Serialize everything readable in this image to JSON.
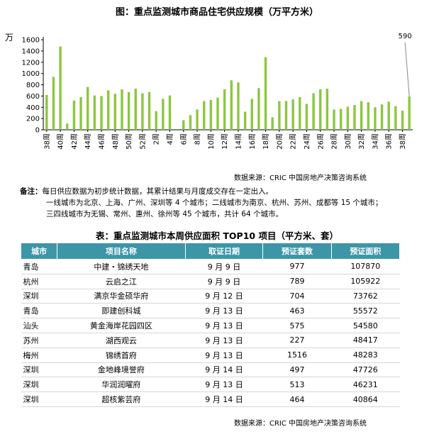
{
  "chart": {
    "title": "图：重点监测城市商品住宅供应规模（万平方米）",
    "unit_label": "万",
    "source": "数据来源：CRIC 中国房地产决策咨询系统",
    "callout": "590"
  },
  "chart_data": {
    "type": "bar",
    "title": "图：重点监测城市商品住宅供应规模（万平方米）",
    "ylabel": "万",
    "ylim": [
      0,
      1600
    ],
    "yticks": [
      0,
      200,
      400,
      600,
      800,
      1000,
      1200,
      1400,
      1600
    ],
    "bar_color": "#8dc63f",
    "x_labels": [
      "38周",
      "40周",
      "42周",
      "44周",
      "46周",
      "48周",
      "50周",
      "52周",
      "2周",
      "4周",
      "6周",
      "8周",
      "10周",
      "12周",
      "14周",
      "16周",
      "18周",
      "20周",
      "22周",
      "24周",
      "26周",
      "28周",
      "30周",
      "32周",
      "34周",
      "36周",
      "38周"
    ],
    "values": [
      620,
      940,
      1480,
      110,
      520,
      580,
      760,
      610,
      600,
      700,
      640,
      720,
      670,
      730,
      650,
      670,
      330,
      550,
      610,
      0,
      170,
      260,
      360,
      510,
      530,
      570,
      720,
      880,
      840,
      320,
      550,
      740,
      1290,
      220,
      510,
      510,
      540,
      580,
      460,
      650,
      720,
      730,
      360,
      370,
      410,
      440,
      510,
      490,
      400,
      450,
      500,
      420,
      340,
      590
    ],
    "annotation": {
      "index": 53,
      "text": "590"
    }
  },
  "note": {
    "label": "备注：",
    "line1": "每日供应数据为初步统计数据，其累计结果与月度成交存在一定出入。",
    "line2": "一线城市为北京、上海、广州、深圳等 4 个城市；二线城市为南京、杭州、苏州、成都等 15 个城市；",
    "line3": "三四线城市为无锡、常州、惠州、徐州等 45 个城市，共计 64 个城市。"
  },
  "table": {
    "title": "表：重点监测城市本周供应面积 TOP10 项目（平方米、套）",
    "headers": [
      "城市",
      "项目名称",
      "取证日期",
      "预证套数",
      "预证面积"
    ],
    "rows": [
      [
        "青岛",
        "中建・锦绣天地",
        "9 月 9 日",
        "977",
        "107870"
      ],
      [
        "杭州",
        "云启之江",
        "9 月 9 日",
        "789",
        "105922"
      ],
      [
        "深圳",
        "满京华金硕华府",
        "9 月 12 日",
        "704",
        "73762"
      ],
      [
        "青岛",
        "即建创科城",
        "9 月 13 日",
        "463",
        "55572"
      ],
      [
        "汕头",
        "黄金海岸花园四区",
        "9 月 13 日",
        "575",
        "54580"
      ],
      [
        "苏州",
        "湖西观云",
        "9 月 13 日",
        "227",
        "48417"
      ],
      [
        "梅州",
        "锦绣首府",
        "9 月 13 日",
        "1516",
        "48283"
      ],
      [
        "深圳",
        "金地峰境誉府",
        "9 月 14 日",
        "497",
        "47726"
      ],
      [
        "深圳",
        "华润润曜府",
        "9 月 13 日",
        "513",
        "46231"
      ],
      [
        "深圳",
        "超核紫芸府",
        "9 月 14 日",
        "464",
        "40864"
      ]
    ],
    "source": "数据来源：CRIC 中国房地产决策咨询系统"
  }
}
